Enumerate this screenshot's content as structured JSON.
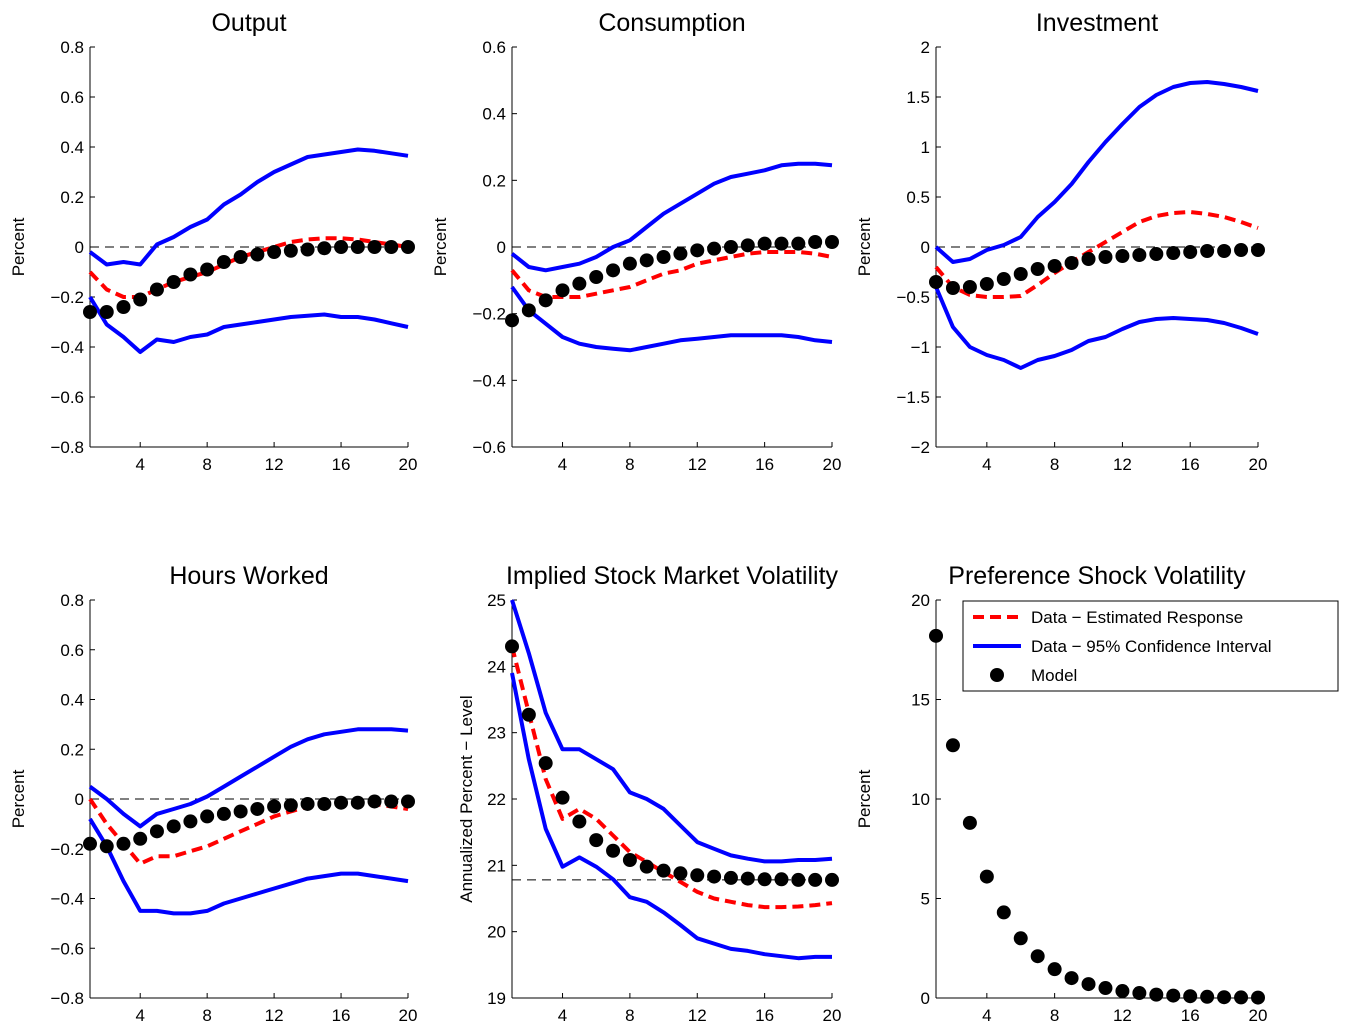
{
  "chart_data": [
    {
      "type": "line",
      "title": "Output",
      "ylabel": "Percent",
      "xlim": [
        1,
        20
      ],
      "ylim": [
        -0.8,
        0.8
      ],
      "xticks": [
        4,
        8,
        12,
        16,
        20
      ],
      "yticks": [
        -0.8,
        -0.6,
        -0.4,
        -0.2,
        0,
        0.2,
        0.4,
        0.6,
        0.8
      ],
      "ytick_labels": [
        "−0.8",
        "−0.6",
        "−0.4",
        "−0.2",
        "0",
        "0.2",
        "0.4",
        "0.6",
        "0.8"
      ],
      "reference_line": 0,
      "x": [
        1,
        2,
        3,
        4,
        5,
        6,
        7,
        8,
        9,
        10,
        11,
        12,
        13,
        14,
        15,
        16,
        17,
        18,
        19,
        20
      ],
      "series": [
        {
          "name": "Data − Estimated Response",
          "style": "dashed",
          "values": [
            -0.1,
            -0.17,
            -0.2,
            -0.2,
            -0.17,
            -0.14,
            -0.12,
            -0.1,
            -0.07,
            -0.04,
            -0.02,
            0.0,
            0.02,
            0.03,
            0.035,
            0.035,
            0.03,
            0.02,
            0.01,
            0.0
          ]
        },
        {
          "role": "upper",
          "style": "solid",
          "values": [
            -0.02,
            -0.07,
            -0.06,
            -0.07,
            0.01,
            0.04,
            0.08,
            0.11,
            0.17,
            0.21,
            0.26,
            0.3,
            0.33,
            0.36,
            0.37,
            0.38,
            0.39,
            0.385,
            0.375,
            0.365
          ]
        },
        {
          "role": "lower",
          "style": "solid",
          "values": [
            -0.2,
            -0.31,
            -0.36,
            -0.42,
            -0.37,
            -0.38,
            -0.36,
            -0.35,
            -0.32,
            -0.31,
            -0.3,
            -0.29,
            -0.28,
            -0.275,
            -0.27,
            -0.28,
            -0.28,
            -0.29,
            -0.305,
            -0.32
          ]
        },
        {
          "name": "Model",
          "style": "markers",
          "values": [
            -0.26,
            -0.26,
            -0.24,
            -0.21,
            -0.17,
            -0.14,
            -0.11,
            -0.09,
            -0.06,
            -0.04,
            -0.03,
            -0.02,
            -0.015,
            -0.01,
            -0.005,
            0.0,
            0.0,
            0.0,
            0.0,
            0.0
          ]
        }
      ]
    },
    {
      "type": "line",
      "title": "Consumption",
      "ylabel": "Percent",
      "xlim": [
        1,
        20
      ],
      "ylim": [
        -0.6,
        0.6
      ],
      "xticks": [
        4,
        8,
        12,
        16,
        20
      ],
      "yticks": [
        -0.6,
        -0.4,
        -0.2,
        0,
        0.2,
        0.4,
        0.6
      ],
      "ytick_labels": [
        "−0.6",
        "−0.4",
        "−0.2",
        "0",
        "0.2",
        "0.4",
        "0.6"
      ],
      "reference_line": 0,
      "x": [
        1,
        2,
        3,
        4,
        5,
        6,
        7,
        8,
        9,
        10,
        11,
        12,
        13,
        14,
        15,
        16,
        17,
        18,
        19,
        20
      ],
      "series": [
        {
          "name": "Data − Estimated Response",
          "style": "dashed",
          "values": [
            -0.07,
            -0.13,
            -0.15,
            -0.15,
            -0.15,
            -0.14,
            -0.13,
            -0.12,
            -0.1,
            -0.08,
            -0.07,
            -0.05,
            -0.04,
            -0.03,
            -0.02,
            -0.015,
            -0.015,
            -0.015,
            -0.02,
            -0.03
          ]
        },
        {
          "role": "upper",
          "style": "solid",
          "values": [
            -0.02,
            -0.06,
            -0.07,
            -0.06,
            -0.05,
            -0.03,
            0.0,
            0.02,
            0.06,
            0.1,
            0.13,
            0.16,
            0.19,
            0.21,
            0.22,
            0.23,
            0.245,
            0.25,
            0.25,
            0.245
          ]
        },
        {
          "role": "lower",
          "style": "solid",
          "values": [
            -0.12,
            -0.19,
            -0.23,
            -0.27,
            -0.29,
            -0.3,
            -0.305,
            -0.31,
            -0.3,
            -0.29,
            -0.28,
            -0.275,
            -0.27,
            -0.265,
            -0.265,
            -0.265,
            -0.265,
            -0.27,
            -0.28,
            -0.285
          ]
        },
        {
          "name": "Model",
          "style": "markers",
          "values": [
            -0.22,
            -0.19,
            -0.16,
            -0.13,
            -0.11,
            -0.09,
            -0.07,
            -0.05,
            -0.04,
            -0.03,
            -0.02,
            -0.01,
            -0.005,
            0.0,
            0.005,
            0.01,
            0.01,
            0.01,
            0.015,
            0.015
          ]
        }
      ]
    },
    {
      "type": "line",
      "title": "Investment",
      "ylabel": "Percent",
      "xlim": [
        1,
        20
      ],
      "ylim": [
        -2,
        2
      ],
      "xticks": [
        4,
        8,
        12,
        16,
        20
      ],
      "yticks": [
        -2,
        -1.5,
        -1,
        -0.5,
        0,
        0.5,
        1,
        1.5,
        2
      ],
      "ytick_labels": [
        "−2",
        "−1.5",
        "−1",
        "−0.5",
        "0",
        "0.5",
        "1",
        "1.5",
        "2"
      ],
      "reference_line": 0,
      "x": [
        1,
        2,
        3,
        4,
        5,
        6,
        7,
        8,
        9,
        10,
        11,
        12,
        13,
        14,
        15,
        16,
        17,
        18,
        19,
        20
      ],
      "series": [
        {
          "name": "Data − Estimated Response",
          "style": "dashed",
          "values": [
            -0.2,
            -0.4,
            -0.48,
            -0.5,
            -0.5,
            -0.49,
            -0.38,
            -0.26,
            -0.15,
            -0.05,
            0.05,
            0.15,
            0.25,
            0.31,
            0.34,
            0.35,
            0.33,
            0.3,
            0.25,
            0.19
          ]
        },
        {
          "role": "upper",
          "style": "solid",
          "values": [
            0.0,
            -0.15,
            -0.12,
            -0.03,
            0.02,
            0.1,
            0.3,
            0.45,
            0.63,
            0.85,
            1.05,
            1.23,
            1.4,
            1.52,
            1.6,
            1.64,
            1.65,
            1.63,
            1.6,
            1.56
          ]
        },
        {
          "role": "lower",
          "style": "solid",
          "values": [
            -0.4,
            -0.8,
            -1.0,
            -1.08,
            -1.13,
            -1.21,
            -1.13,
            -1.09,
            -1.03,
            -0.94,
            -0.9,
            -0.82,
            -0.75,
            -0.72,
            -0.71,
            -0.72,
            -0.73,
            -0.76,
            -0.81,
            -0.87
          ]
        },
        {
          "name": "Model",
          "style": "markers",
          "values": [
            -0.35,
            -0.41,
            -0.4,
            -0.37,
            -0.32,
            -0.27,
            -0.22,
            -0.19,
            -0.16,
            -0.12,
            -0.1,
            -0.09,
            -0.08,
            -0.07,
            -0.06,
            -0.05,
            -0.04,
            -0.04,
            -0.03,
            -0.03
          ]
        }
      ]
    },
    {
      "type": "line",
      "title": "Hours Worked",
      "ylabel": "Percent",
      "xlim": [
        1,
        20
      ],
      "ylim": [
        -0.8,
        0.8
      ],
      "xticks": [
        4,
        8,
        12,
        16,
        20
      ],
      "yticks": [
        -0.8,
        -0.6,
        -0.4,
        -0.2,
        0,
        0.2,
        0.4,
        0.6,
        0.8
      ],
      "ytick_labels": [
        "−0.8",
        "−0.6",
        "−0.4",
        "−0.2",
        "0",
        "0.2",
        "0.4",
        "0.6",
        "0.8"
      ],
      "reference_line": 0,
      "x": [
        1,
        2,
        3,
        4,
        5,
        6,
        7,
        8,
        9,
        10,
        11,
        12,
        13,
        14,
        15,
        16,
        17,
        18,
        19,
        20
      ],
      "series": [
        {
          "name": "Data − Estimated Response",
          "style": "dashed",
          "values": [
            0.0,
            -0.1,
            -0.18,
            -0.26,
            -0.23,
            -0.23,
            -0.21,
            -0.19,
            -0.16,
            -0.13,
            -0.1,
            -0.07,
            -0.05,
            -0.03,
            -0.015,
            -0.01,
            -0.01,
            -0.02,
            -0.03,
            -0.04
          ]
        },
        {
          "role": "upper",
          "style": "solid",
          "values": [
            0.05,
            0.0,
            -0.06,
            -0.11,
            -0.06,
            -0.04,
            -0.02,
            0.01,
            0.05,
            0.09,
            0.13,
            0.17,
            0.21,
            0.24,
            0.26,
            0.27,
            0.28,
            0.28,
            0.28,
            0.275
          ]
        },
        {
          "role": "lower",
          "style": "solid",
          "values": [
            -0.08,
            -0.19,
            -0.33,
            -0.45,
            -0.45,
            -0.46,
            -0.46,
            -0.45,
            -0.42,
            -0.4,
            -0.38,
            -0.36,
            -0.34,
            -0.32,
            -0.31,
            -0.3,
            -0.3,
            -0.31,
            -0.32,
            -0.33
          ]
        },
        {
          "name": "Model",
          "style": "markers",
          "values": [
            -0.18,
            -0.19,
            -0.18,
            -0.16,
            -0.13,
            -0.11,
            -0.09,
            -0.07,
            -0.06,
            -0.05,
            -0.04,
            -0.03,
            -0.025,
            -0.02,
            -0.02,
            -0.015,
            -0.015,
            -0.01,
            -0.01,
            -0.01
          ]
        }
      ]
    },
    {
      "type": "line",
      "title": "Implied Stock Market Volatility",
      "ylabel": "Annualized Percent − Level",
      "xlim": [
        1,
        20
      ],
      "ylim": [
        19,
        25
      ],
      "xticks": [
        4,
        8,
        12,
        16,
        20
      ],
      "yticks": [
        19,
        20,
        21,
        22,
        23,
        24,
        25
      ],
      "ytick_labels": [
        "19",
        "20",
        "21",
        "22",
        "23",
        "24",
        "25"
      ],
      "reference_line": 20.78,
      "x": [
        1,
        2,
        3,
        4,
        5,
        6,
        7,
        8,
        9,
        10,
        11,
        12,
        13,
        14,
        15,
        16,
        17,
        18,
        19,
        20
      ],
      "series": [
        {
          "name": "Data − Estimated Response",
          "style": "dashed",
          "values": [
            24.3,
            23.3,
            22.3,
            21.7,
            21.85,
            21.7,
            21.45,
            21.2,
            21.05,
            20.9,
            20.75,
            20.6,
            20.5,
            20.45,
            20.4,
            20.37,
            20.37,
            20.38,
            20.4,
            20.43
          ]
        },
        {
          "role": "upper",
          "style": "solid",
          "values": [
            25.0,
            24.2,
            23.3,
            22.75,
            22.75,
            22.6,
            22.45,
            22.1,
            22.0,
            21.85,
            21.6,
            21.35,
            21.25,
            21.15,
            21.1,
            21.06,
            21.06,
            21.08,
            21.08,
            21.1
          ]
        },
        {
          "role": "lower",
          "style": "solid",
          "values": [
            23.9,
            22.6,
            21.55,
            20.98,
            21.12,
            20.98,
            20.79,
            20.52,
            20.45,
            20.29,
            20.1,
            19.9,
            19.82,
            19.74,
            19.71,
            19.66,
            19.63,
            19.6,
            19.62,
            19.62
          ]
        },
        {
          "name": "Model",
          "style": "markers",
          "values": [
            24.3,
            23.27,
            22.54,
            22.02,
            21.66,
            21.38,
            21.22,
            21.08,
            20.98,
            20.92,
            20.88,
            20.85,
            20.83,
            20.81,
            20.8,
            20.79,
            20.79,
            20.78,
            20.78,
            20.78
          ]
        }
      ]
    },
    {
      "type": "scatter",
      "title": "Preference Shock Volatility",
      "ylabel": "Percent",
      "xlim": [
        1,
        20
      ],
      "ylim": [
        0,
        20
      ],
      "xticks": [
        4,
        8,
        12,
        16,
        20
      ],
      "yticks": [
        0,
        5,
        10,
        15,
        20
      ],
      "ytick_labels": [
        "0",
        "5",
        "10",
        "15",
        "20"
      ],
      "reference_line": 0,
      "legend_position": "top-right",
      "x": [
        1,
        2,
        3,
        4,
        5,
        6,
        7,
        8,
        9,
        10,
        11,
        12,
        13,
        14,
        15,
        16,
        17,
        18,
        19,
        20
      ],
      "series": [
        {
          "name": "Model",
          "style": "markers",
          "values": [
            18.2,
            12.7,
            8.8,
            6.1,
            4.3,
            3.0,
            2.1,
            1.45,
            1.0,
            0.7,
            0.5,
            0.35,
            0.25,
            0.17,
            0.12,
            0.09,
            0.06,
            0.04,
            0.03,
            0.02
          ]
        }
      ]
    }
  ],
  "legend": {
    "items": [
      {
        "label": "Data − Estimated Response",
        "style": "dashed"
      },
      {
        "label": "Data − 95% Confidence Interval",
        "style": "solid"
      },
      {
        "label": "Model",
        "style": "markers"
      }
    ]
  },
  "colors": {
    "estimate": "#ff0000",
    "confidence": "#0000ff",
    "model": "#000000",
    "reference": "#000000"
  }
}
